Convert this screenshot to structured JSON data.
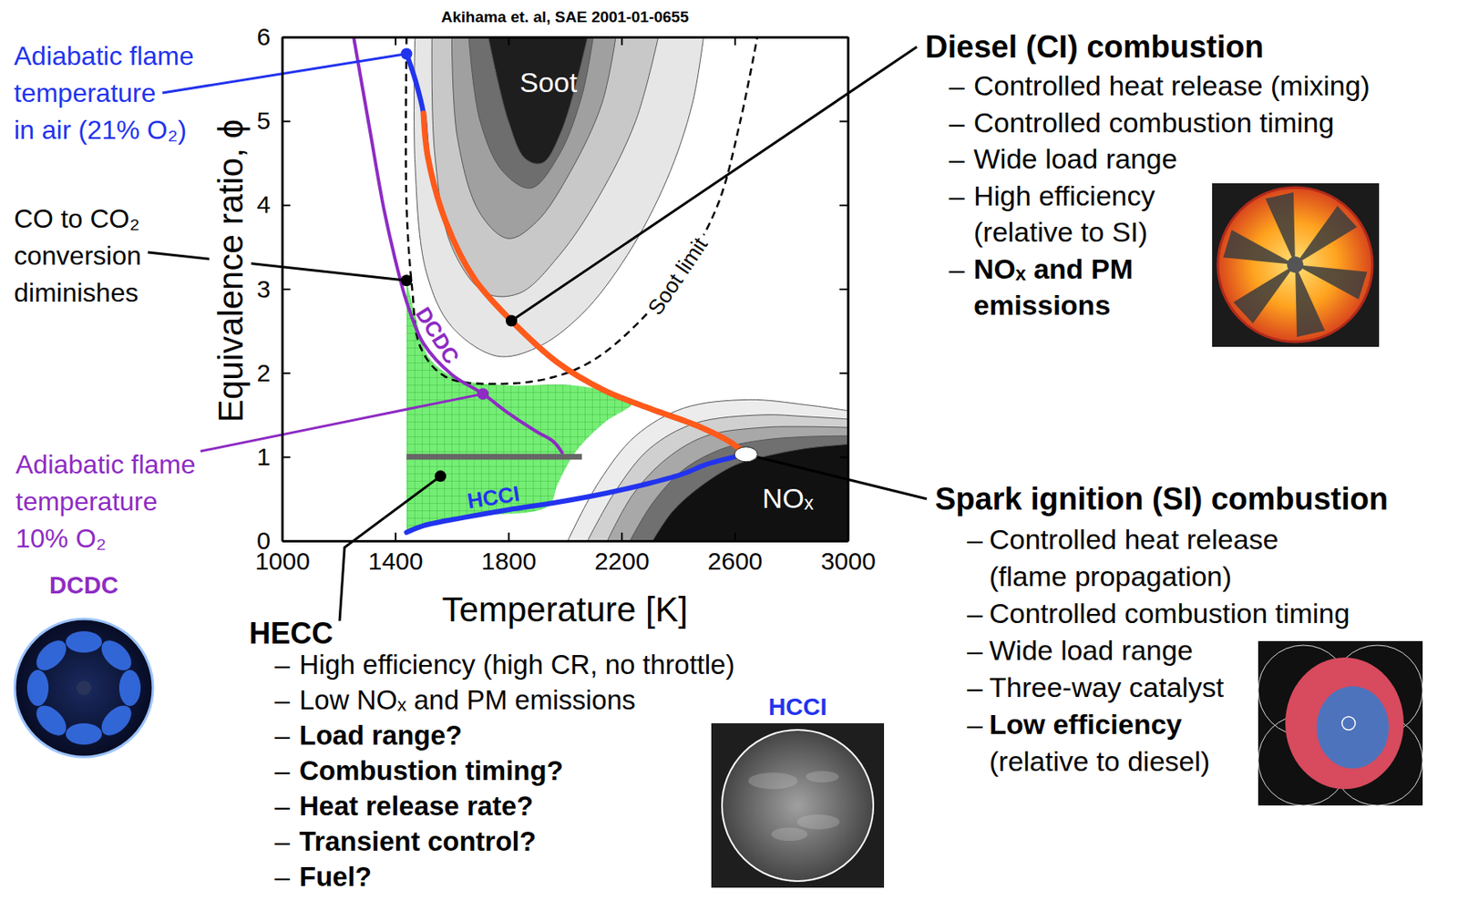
{
  "chart_data": {
    "type": "line",
    "title": "Akihama et. al, SAE 2001-01-0655",
    "x_label": "Temperature [K]",
    "y_label": "Equivalence ratio, ϕ",
    "xlim": [
      1000,
      3000
    ],
    "ylim": [
      0,
      6
    ],
    "xticks": [
      1000,
      1400,
      1800,
      2200,
      2600,
      3000
    ],
    "yticks": [
      0,
      1,
      2,
      3,
      4,
      5,
      6
    ],
    "grid": false,
    "series": [
      {
        "color": "#2233ee",
        "line_style": "solid",
        "x": [
          1440,
          1500,
          1647,
          1800,
          1975,
          2150,
          2304,
          2420,
          2500,
          2600,
          2650,
          2616,
          2583,
          2468,
          2304,
          2140,
          1975,
          1811,
          1680,
          1581,
          1516,
          1500,
          1470,
          1440
        ],
        "values": [
          0.1,
          0.18,
          0.28,
          0.37,
          0.46,
          0.57,
          0.69,
          0.8,
          0.91,
          1.0,
          1.05,
          1.1,
          1.18,
          1.37,
          1.57,
          1.79,
          2.12,
          2.62,
          3.12,
          3.78,
          4.56,
          5.09,
          5.5,
          5.8
        ]
      },
      {
        "color": "#ff5a1a",
        "line_style": "solid",
        "x": [
          2650,
          2616,
          2583,
          2468,
          2304,
          2140,
          1975,
          1811,
          1680,
          1581,
          1516,
          1500
        ],
        "values": [
          1.05,
          1.1,
          1.18,
          1.37,
          1.57,
          1.79,
          2.12,
          2.62,
          3.12,
          3.78,
          4.56,
          5.09
        ]
      },
      {
        "color": "#8e2bc4",
        "line_style": "solid",
        "x": [
          1253,
          1310,
          1360,
          1400,
          1440,
          1500,
          1600,
          1710,
          1800,
          1900,
          1960,
          1990
        ],
        "values": [
          6.0,
          4.9,
          3.95,
          3.35,
          2.85,
          2.35,
          1.98,
          1.75,
          1.52,
          1.3,
          1.18,
          1.05
        ]
      }
    ],
    "soot_contours": [
      {
        "color": "#e6e6e6",
        "x": [
          1470,
          1470,
          1510,
          1600,
          1760,
          1900,
          2060,
          2220,
          2360,
          2450,
          2490
        ],
        "values": [
          6,
          4.5,
          3.2,
          2.55,
          2.2,
          2.3,
          2.7,
          3.4,
          4.3,
          5.2,
          6
        ]
      },
      {
        "color": "#c8c8c8",
        "x": [
          1530,
          1540,
          1600,
          1720,
          1840,
          1980,
          2120,
          2250,
          2330
        ],
        "values": [
          6,
          4.6,
          3.5,
          2.95,
          2.95,
          3.4,
          4.1,
          5.0,
          6
        ]
      },
      {
        "color": "#a0a0a0",
        "x": [
          1600,
          1620,
          1700,
          1800,
          1900,
          2020,
          2130,
          2180
        ],
        "values": [
          6,
          4.8,
          3.9,
          3.6,
          3.8,
          4.4,
          5.2,
          6
        ]
      },
      {
        "color": "#6e6e6e",
        "x": [
          1660,
          1700,
          1780,
          1880,
          1980,
          2060,
          2100
        ],
        "values": [
          6,
          5.0,
          4.4,
          4.2,
          4.6,
          5.3,
          6
        ]
      },
      {
        "color": "#1e1e1e",
        "x": [
          1729,
          1800,
          1860,
          1920,
          1990,
          2080
        ],
        "values": [
          6,
          5.0,
          4.55,
          4.5,
          4.9,
          6
        ]
      }
    ],
    "nox_contours": [
      {
        "color": "#ececec",
        "x": [
          2010,
          2120,
          2250,
          2420,
          2650,
          2850,
          3000
        ],
        "values": [
          0,
          0.7,
          1.25,
          1.58,
          1.68,
          1.62,
          1.55
        ]
      },
      {
        "color": "#d0d0d0",
        "x": [
          2080,
          2180,
          2300,
          2460,
          2700,
          2850,
          3000
        ],
        "values": [
          0,
          0.6,
          1.1,
          1.4,
          1.5,
          1.48,
          1.45
        ]
      },
      {
        "color": "#a8a8a8",
        "x": [
          2150,
          2240,
          2360,
          2500,
          2700,
          2850,
          3000
        ],
        "values": [
          0,
          0.55,
          0.98,
          1.25,
          1.35,
          1.36,
          1.35
        ]
      },
      {
        "color": "#707070",
        "x": [
          2230,
          2310,
          2420,
          2560,
          2700,
          2850,
          3000
        ],
        "values": [
          0,
          0.45,
          0.85,
          1.1,
          1.2,
          1.24,
          1.25
        ]
      },
      {
        "color": "#111111",
        "x": [
          2310,
          2380,
          2480,
          2600,
          2700,
          2850,
          3000
        ],
        "values": [
          0,
          0.35,
          0.65,
          0.9,
          1.0,
          1.1,
          1.15
        ]
      }
    ],
    "soot_limit": {
      "label": "Soot limit",
      "line_style": "dashed",
      "color": "#000000",
      "x": [
        1440,
        1440,
        1460,
        1490,
        1580,
        1780,
        1960,
        2100,
        2260,
        2420,
        2540,
        2620,
        2680
      ],
      "values": [
        6,
        4,
        3.0,
        2.3,
        1.95,
        1.87,
        1.95,
        2.15,
        2.6,
        3.25,
        4.0,
        5.0,
        6
      ]
    },
    "hecc_region": {
      "color": "#74ee74",
      "x": [
        1440,
        1647,
        1940,
        1975,
        2040,
        2140,
        2240,
        2150,
        2000,
        1810,
        1620,
        1520,
        1470,
        1440
      ],
      "values": [
        0.1,
        0.28,
        0.41,
        0.68,
        1.07,
        1.41,
        1.65,
        1.78,
        1.86,
        1.85,
        1.93,
        2.18,
        2.7,
        3.1
      ]
    },
    "stoichiometric_line": {
      "color": "#666666",
      "x": [
        1440,
        2060
      ],
      "values": [
        1,
        1
      ]
    },
    "region_labels": [
      {
        "text": "Soot",
        "color": "#ffffff"
      },
      {
        "text": "NOₓ",
        "color": "#ffffff"
      }
    ],
    "curve_labels": [
      {
        "text": "DCDC",
        "color": "#8e2bc4"
      },
      {
        "text": "HCCI",
        "color": "#2233ee"
      }
    ],
    "annotations": [
      {
        "lines": [
          "Adiabatic flame",
          "temperature",
          "in air (21% O₂)"
        ],
        "color": "#2233ee",
        "point": [
          1440,
          5.8
        ]
      },
      {
        "lines": [
          "CO to CO₂",
          "conversion",
          "diminishes"
        ],
        "color": "#000000",
        "point": [
          1440,
          3.1
        ]
      },
      {
        "lines": [
          "Adiabatic flame",
          "temperature",
          "10% O₂"
        ],
        "color": "#8e2bc4",
        "point": [
          1710,
          1.75
        ]
      }
    ],
    "bullet": "–",
    "panels": [
      {
        "title": "Diesel (CI) combustion",
        "bullets": [
          [
            "Controlled heat release (mixing)"
          ],
          [
            "Controlled combustion timing"
          ],
          [
            "Wide load range"
          ],
          [
            "High efficiency",
            "(relative to SI)"
          ],
          [
            "NOₓ and PM",
            "emissions"
          ]
        ],
        "point": [
          1811,
          2.62
        ],
        "color": "#000000",
        "marker": "circle"
      },
      {
        "title": "Spark ignition (SI) combustion",
        "bullets": [
          [
            "Controlled heat release",
            "(flame propagation)"
          ],
          [
            "Controlled combustion timing"
          ],
          [
            "Wide load range"
          ],
          [
            "Three-way catalyst"
          ],
          [
            "Low efficiency",
            "(relative to diesel)"
          ]
        ],
        "point": [
          2640,
          1.03
        ],
        "color": "#ffffff",
        "marker": "ellipse"
      },
      {
        "title": "HECC",
        "bullets": [
          [
            "High efficiency (high CR, no throttle)"
          ],
          [
            "Low NOₓ and PM emissions"
          ],
          [
            "Load range?"
          ],
          [
            "Combustion timing?"
          ],
          [
            "Heat release rate?"
          ],
          [
            "Transient control?"
          ],
          [
            "Fuel?"
          ]
        ],
        "point": [
          1560,
          0.77
        ],
        "color": "#000000",
        "marker": "circle"
      }
    ],
    "image_labels": [
      {
        "text": "DCDC",
        "color": "#8e2bc4"
      },
      {
        "text": "HCCI",
        "color": "#2233ee"
      }
    ]
  }
}
